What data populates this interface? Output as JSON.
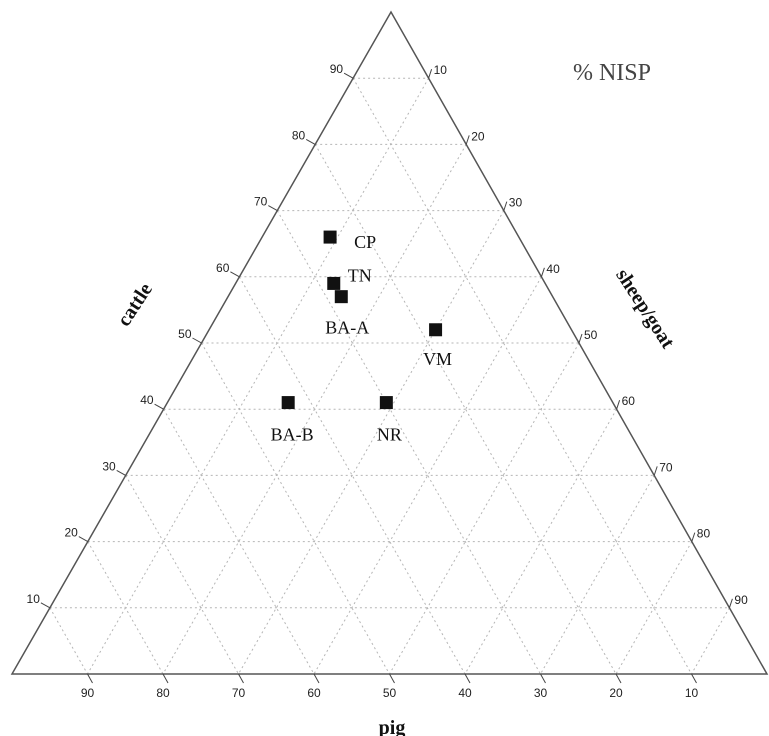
{
  "chart_data": {
    "type": "scatter",
    "subtype": "ternary",
    "title": "% NISP",
    "axes": {
      "left": {
        "label": "cattle",
        "ticks": [
          10,
          20,
          30,
          40,
          50,
          60,
          70,
          80,
          90
        ]
      },
      "right": {
        "label": "sheep/goat",
        "ticks": [
          10,
          20,
          30,
          40,
          50,
          60,
          70,
          80,
          90
        ]
      },
      "bottom": {
        "label": "pig",
        "ticks": [
          90,
          80,
          70,
          60,
          50,
          40,
          30,
          20,
          10
        ]
      }
    },
    "grid": true,
    "points": [
      {
        "label": "CP",
        "cattle": 66,
        "pig": 25,
        "sheep_goat": 9
      },
      {
        "label": "TN",
        "cattle": 59,
        "pig": 28,
        "sheep_goat": 13
      },
      {
        "label": "BA-A",
        "cattle": 57,
        "pig": 28,
        "sheep_goat": 15
      },
      {
        "label": "VM",
        "cattle": 52,
        "pig": 18,
        "sheep_goat": 30
      },
      {
        "label": "BA-B",
        "cattle": 41,
        "pig": 43,
        "sheep_goat": 16
      },
      {
        "label": "NR",
        "cattle": 41,
        "pig": 30,
        "sheep_goat": 29
      }
    ]
  }
}
